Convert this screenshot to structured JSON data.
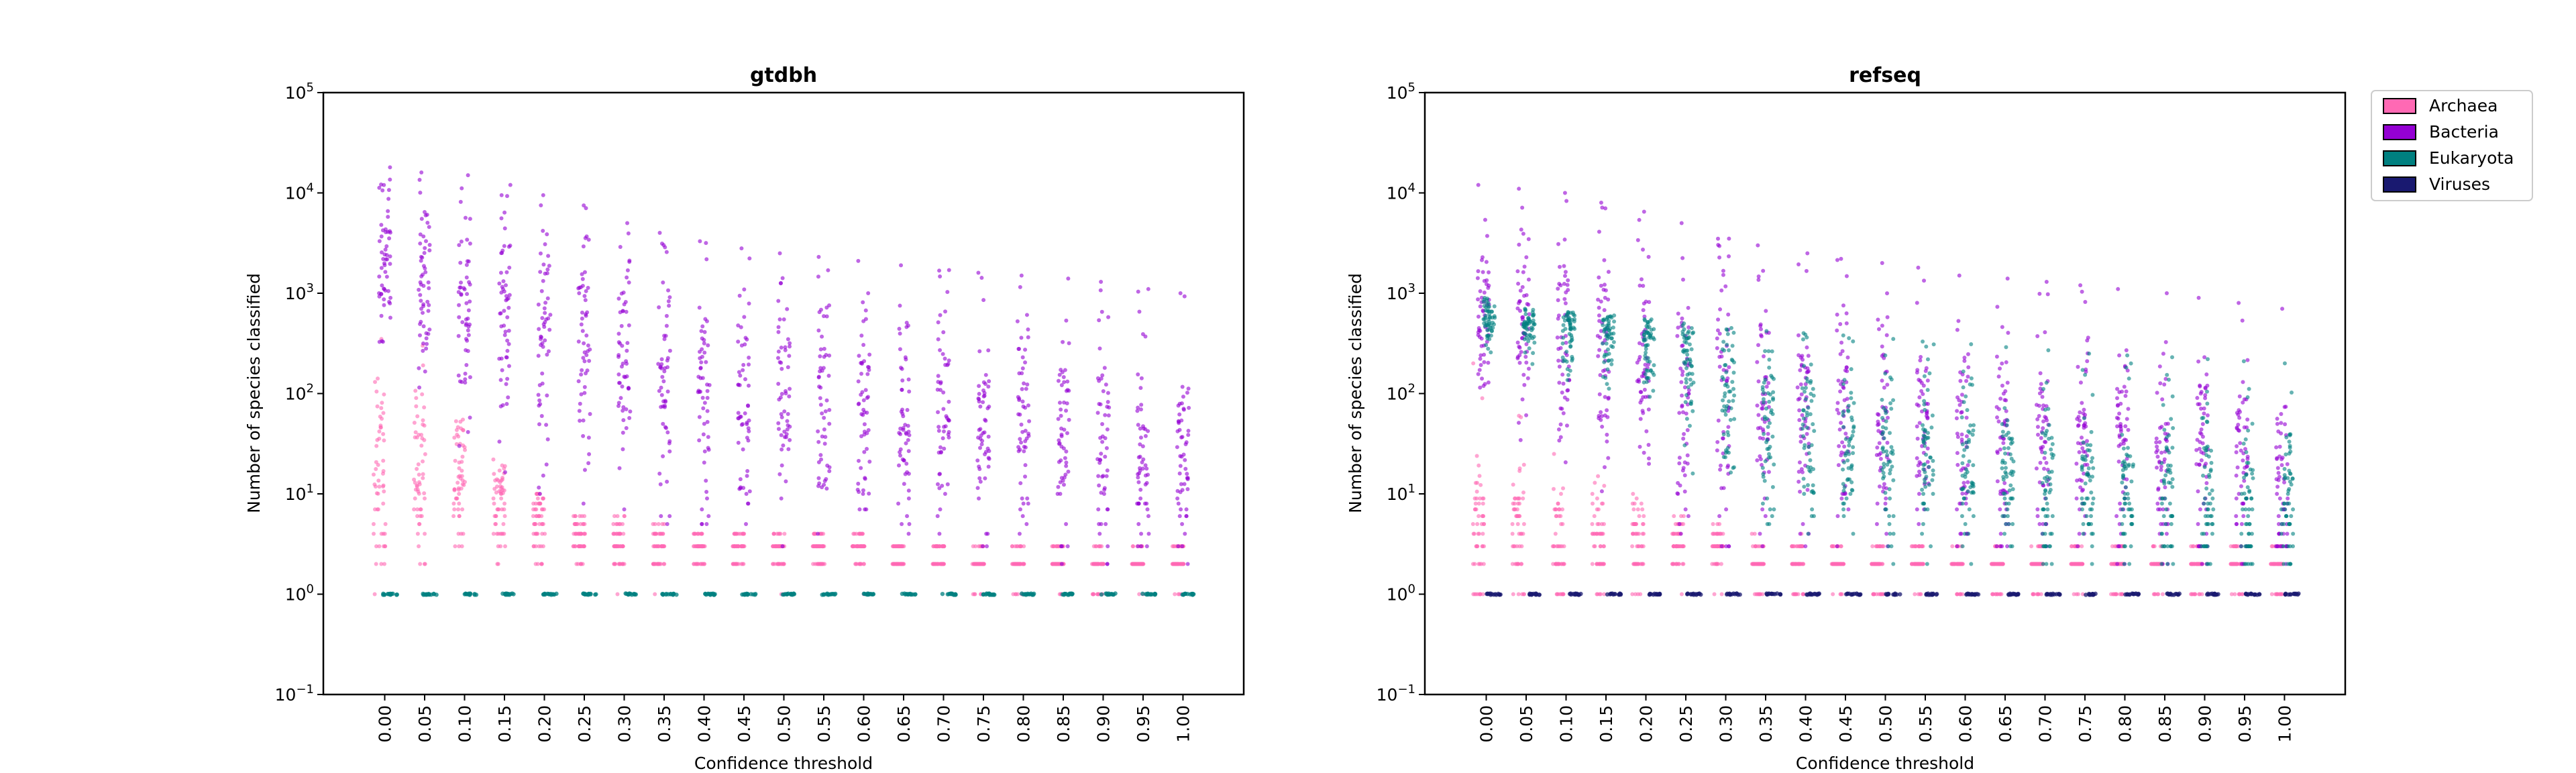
{
  "chart_data": [
    {
      "type": "scatter",
      "title": "gtdbh",
      "xlabel": "Confidence threshold",
      "ylabel": "Number of species classified",
      "yscale": "log",
      "ylim": [
        0.1,
        100000
      ],
      "yticks": [
        "10−1",
        "100",
        "101",
        "102",
        "103",
        "104",
        "105"
      ],
      "categories": [
        "0.00",
        "0.05",
        "0.10",
        "0.15",
        "0.20",
        "0.25",
        "0.30",
        "0.35",
        "0.40",
        "0.45",
        "0.50",
        "0.55",
        "0.60",
        "0.65",
        "0.70",
        "0.75",
        "0.80",
        "0.85",
        "0.90",
        "0.95",
        "1.00"
      ],
      "grid": false,
      "series": [
        {
          "name": "Archaea",
          "color": "#ff69b4",
          "max": [
            350,
            300,
            55,
            22,
            10,
            6,
            6,
            5,
            4,
            4,
            4,
            4,
            4,
            3,
            3,
            3,
            3,
            3,
            3,
            3,
            3
          ],
          "median": [
            20,
            15,
            12,
            8,
            5,
            4,
            3,
            3,
            3,
            3,
            3,
            3,
            3,
            3,
            3,
            2,
            2,
            2,
            2,
            2,
            2
          ],
          "min": [
            1,
            1,
            1,
            1,
            1,
            1,
            1,
            1,
            1,
            1,
            1,
            1,
            1,
            1,
            1,
            1,
            1,
            1,
            1,
            1,
            1
          ]
        },
        {
          "name": "Bacteria",
          "color": "#9400d3",
          "max": [
            18000,
            16000,
            15000,
            12000,
            9500,
            7500,
            5000,
            4000,
            3300,
            2800,
            2500,
            2300,
            2100,
            1900,
            1700,
            1600,
            1500,
            1400,
            1300,
            1100,
            1000
          ],
          "median": [
            2500,
            1000,
            700,
            450,
            350,
            250,
            180,
            130,
            110,
            90,
            80,
            70,
            60,
            55,
            50,
            45,
            40,
            38,
            35,
            32,
            30
          ],
          "min": [
            300,
            100,
            30,
            12,
            8,
            6,
            5,
            4,
            4,
            3,
            3,
            3,
            3,
            3,
            3,
            3,
            3,
            2,
            2,
            2,
            2
          ]
        },
        {
          "name": "Eukaryota",
          "color": "#008080",
          "max": [
            1,
            1,
            1,
            1,
            1,
            1,
            1,
            1,
            1,
            1,
            1,
            1,
            1,
            1,
            1,
            1,
            1,
            1,
            1,
            1,
            1
          ],
          "median": [
            1,
            1,
            1,
            1,
            1,
            1,
            1,
            1,
            1,
            1,
            1,
            1,
            1,
            1,
            1,
            1,
            1,
            1,
            1,
            1,
            1
          ],
          "min": [
            1,
            1,
            1,
            1,
            1,
            1,
            1,
            1,
            1,
            1,
            1,
            1,
            1,
            1,
            1,
            1,
            1,
            1,
            1,
            1,
            1
          ]
        }
      ]
    },
    {
      "type": "scatter",
      "title": "refseq",
      "xlabel": "Confidence threshold",
      "ylabel": "Number of species classified",
      "yscale": "log",
      "ylim": [
        0.1,
        100000
      ],
      "yticks": [
        "10−1",
        "100",
        "101",
        "102",
        "103",
        "104",
        "105"
      ],
      "categories": [
        "0.00",
        "0.05",
        "0.10",
        "0.15",
        "0.20",
        "0.25",
        "0.30",
        "0.35",
        "0.40",
        "0.45",
        "0.50",
        "0.55",
        "0.60",
        "0.65",
        "0.70",
        "0.75",
        "0.80",
        "0.85",
        "0.90",
        "0.95",
        "1.00"
      ],
      "grid": false,
      "series": [
        {
          "name": "Archaea",
          "color": "#ff69b4",
          "max": [
            200,
            60,
            25,
            15,
            10,
            6,
            5,
            4,
            4,
            3,
            3,
            3,
            3,
            3,
            3,
            3,
            3,
            3,
            3,
            3,
            3
          ],
          "median": [
            5,
            4,
            3,
            3,
            3,
            3,
            3,
            2,
            2,
            2,
            2,
            2,
            2,
            2,
            2,
            2,
            2,
            2,
            2,
            2,
            2
          ],
          "min": [
            1,
            1,
            1,
            1,
            1,
            1,
            1,
            1,
            1,
            1,
            1,
            1,
            1,
            1,
            1,
            1,
            1,
            1,
            1,
            1,
            1
          ]
        },
        {
          "name": "Bacteria",
          "color": "#9400d3",
          "max": [
            12000,
            11000,
            10000,
            8000,
            6500,
            5000,
            3500,
            3000,
            2500,
            2200,
            2000,
            1800,
            1500,
            1400,
            1300,
            1200,
            1100,
            1000,
            900,
            800,
            700
          ],
          "median": [
            600,
            450,
            300,
            200,
            150,
            120,
            90,
            70,
            60,
            50,
            45,
            40,
            35,
            32,
            30,
            28,
            25,
            22,
            20,
            18,
            15
          ],
          "min": [
            100,
            30,
            10,
            6,
            5,
            4,
            3,
            3,
            3,
            3,
            3,
            3,
            3,
            3,
            3,
            3,
            2,
            2,
            2,
            2,
            2
          ]
        },
        {
          "name": "Eukaryota",
          "color": "#008080",
          "max": [
            900,
            700,
            650,
            600,
            550,
            500,
            450,
            420,
            400,
            380,
            350,
            330,
            310,
            290,
            270,
            250,
            240,
            230,
            220,
            210,
            200
          ],
          "median": [
            600,
            500,
            450,
            400,
            350,
            200,
            120,
            60,
            40,
            30,
            25,
            20,
            18,
            16,
            14,
            12,
            10,
            10,
            9,
            8,
            8
          ],
          "min": [
            200,
            100,
            50,
            30,
            20,
            10,
            5,
            3,
            3,
            2,
            2,
            2,
            2,
            2,
            2,
            2,
            2,
            2,
            2,
            2,
            2
          ]
        },
        {
          "name": "Viruses",
          "color": "#191970",
          "max": [
            1,
            1,
            1,
            1,
            1,
            1,
            1,
            1,
            1,
            1,
            1,
            1,
            1,
            1,
            1,
            1,
            1,
            1,
            1,
            1,
            1
          ],
          "median": [
            1,
            1,
            1,
            1,
            1,
            1,
            1,
            1,
            1,
            1,
            1,
            1,
            1,
            1,
            1,
            1,
            1,
            1,
            1,
            1,
            1
          ],
          "min": [
            1,
            1,
            1,
            1,
            1,
            1,
            1,
            1,
            1,
            1,
            1,
            1,
            1,
            1,
            1,
            1,
            1,
            1,
            1,
            1,
            1
          ]
        }
      ]
    }
  ],
  "legend": {
    "placement": "right",
    "entries": [
      {
        "label": "Archaea",
        "color": "#ff69b4"
      },
      {
        "label": "Bacteria",
        "color": "#9400d3"
      },
      {
        "label": "Eukaryota",
        "color": "#008080"
      },
      {
        "label": "Viruses",
        "color": "#191970"
      }
    ]
  }
}
